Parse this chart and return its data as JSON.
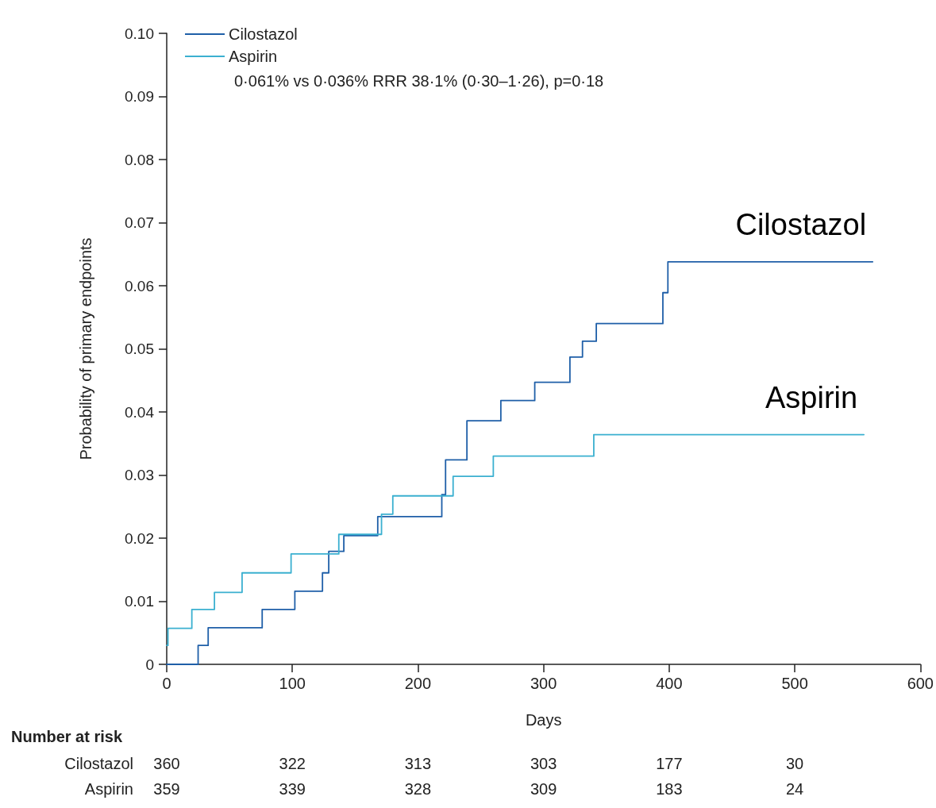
{
  "chart_data": {
    "type": "step",
    "xlabel": "Days",
    "ylabel": "Probability of primary endpoints",
    "xlim": [
      0,
      600
    ],
    "xticks": [
      0,
      100,
      200,
      300,
      400,
      500,
      600
    ],
    "ylim": [
      0,
      0.1
    ],
    "yticks": [
      0,
      0.01,
      0.02,
      0.03,
      0.04,
      0.05,
      0.06,
      0.07,
      0.08,
      0.09,
      {
        "value": 0.1,
        "label": "0.10"
      }
    ],
    "legend": "top left",
    "marker": "none",
    "line_style": "solid",
    "grid": false,
    "series": [
      {
        "name": "Cilostazol",
        "color": "#1f5fa8",
        "x": [
          0,
          25,
          33,
          76,
          102,
          124,
          129,
          141,
          168,
          219,
          222,
          239,
          266,
          293,
          321,
          331,
          342,
          395,
          399,
          562
        ],
        "values": [
          0,
          0.003,
          0.0058,
          0.0087,
          0.0116,
          0.0145,
          0.0179,
          0.0204,
          0.0234,
          0.0269,
          0.0324,
          0.0386,
          0.0418,
          0.0447,
          0.0487,
          0.0512,
          0.054,
          0.0589,
          0.0638,
          0.0638
        ]
      },
      {
        "name": "Aspirin",
        "color": "#3bb0d0",
        "x": [
          0,
          1,
          20,
          38,
          60,
          99,
          137,
          171,
          180,
          228,
          260,
          340,
          555
        ],
        "values": [
          0.003,
          0.0057,
          0.0087,
          0.0114,
          0.0145,
          0.0175,
          0.0206,
          0.0238,
          0.0267,
          0.0298,
          0.033,
          0.0364,
          0.0364
        ]
      }
    ],
    "annotations": [
      "0·061% vs 0·036% RRR 38·1% (0·30–1·26), p=0·18",
      "Number at risk",
      "Cilostazol",
      "360",
      "322",
      "313",
      "303",
      "177",
      "30",
      "Aspirin",
      "359",
      "339",
      "328",
      "309",
      "183",
      "24"
    ]
  }
}
